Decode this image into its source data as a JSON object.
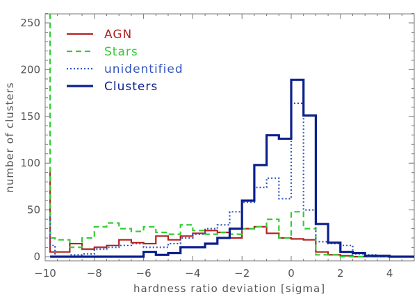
{
  "chart_data": {
    "type": "line",
    "xlabel": "hardness ratio deviation  [sigma]",
    "ylabel": "number of clusters",
    "xlim": [
      -10,
      5
    ],
    "ylim": [
      0,
      260
    ],
    "x_ticks": [
      -10,
      -8,
      -6,
      -4,
      -2,
      0,
      2,
      4
    ],
    "x_tick_labels": [
      "−10",
      "−8",
      "−6",
      "−4",
      "−2",
      "0",
      "2",
      "4"
    ],
    "y_ticks": [
      0,
      50,
      100,
      150,
      200,
      250
    ],
    "y_tick_labels": [
      "0",
      "50",
      "100",
      "150",
      "200",
      "250"
    ],
    "grid": false,
    "legend_position": "top-left",
    "bin_edges": [
      -9.8,
      -9.6,
      -9.0,
      -8.5,
      -8.0,
      -7.5,
      -7.0,
      -6.5,
      -6.0,
      -5.5,
      -5.0,
      -4.5,
      -4.0,
      -3.5,
      -3.0,
      -2.5,
      -2.0,
      -1.5,
      -1.0,
      -0.5,
      0.0,
      0.5,
      1.0,
      1.5,
      2.0,
      2.5,
      3.0,
      3.5,
      4.0,
      4.5,
      5.0
    ],
    "series": [
      {
        "name": "AGN",
        "color": "#b22222",
        "dash": "solid",
        "width": 2.2,
        "start": 95,
        "values": [
          5,
          5,
          14,
          8,
          10,
          12,
          18,
          15,
          14,
          22,
          18,
          22,
          25,
          28,
          26,
          20,
          30,
          32,
          25,
          20,
          19,
          18,
          5,
          2,
          1,
          0,
          0,
          0,
          0,
          0
        ]
      },
      {
        "name": "Stars",
        "color": "#33cc33",
        "dash": "dashed",
        "width": 2.2,
        "start": 260,
        "values": [
          20,
          18,
          10,
          20,
          32,
          36,
          30,
          27,
          32,
          26,
          24,
          34,
          28,
          24,
          26,
          24,
          30,
          32,
          40,
          20,
          48,
          30,
          2,
          2,
          0,
          0,
          0,
          0,
          0,
          0
        ]
      },
      {
        "name": "unidentified",
        "color": "#3355bb",
        "dash": "dotted",
        "width": 2.2,
        "start": 43,
        "values": [
          12,
          0,
          2,
          3,
          8,
          10,
          12,
          14,
          10,
          10,
          14,
          20,
          24,
          30,
          34,
          48,
          58,
          74,
          84,
          62,
          164,
          50,
          16,
          14,
          12,
          3,
          2,
          0,
          0,
          0
        ]
      },
      {
        "name": "Clusters",
        "color": "#0b1f8c",
        "dash": "solid",
        "width": 3.2,
        "start": 0,
        "values": [
          0,
          0,
          0,
          0,
          0,
          0,
          0,
          0,
          5,
          2,
          4,
          10,
          10,
          14,
          20,
          30,
          60,
          98,
          130,
          126,
          189,
          151,
          35,
          15,
          5,
          4,
          1,
          1,
          0,
          0
        ]
      }
    ]
  }
}
